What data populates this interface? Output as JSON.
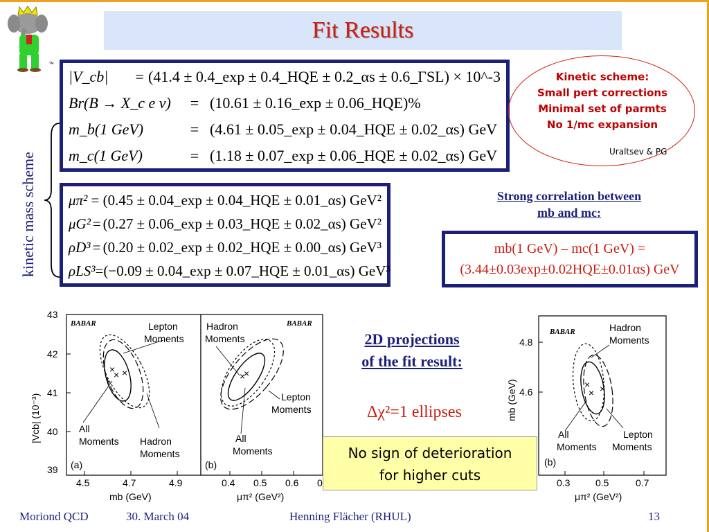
{
  "slide": {
    "title": "Fit Results",
    "tm": "™",
    "vertical_label": "kinetic mass scheme"
  },
  "box1": {
    "rows": [
      {
        "lhs": "|V_cb|",
        "rhs": "(41.4 ± 0.4_exp ± 0.4_HQE ± 0.2_αs ± 0.6_ΓSL) × 10^-3"
      },
      {
        "lhs": "Br(B → X_c e ν)",
        "rhs": "(10.61 ± 0.16_exp ± 0.06_HQE)%"
      },
      {
        "lhs": "m_b(1 GeV)",
        "rhs": "(4.61 ± 0.05_exp ± 0.04_HQE ± 0.02_αs) GeV"
      },
      {
        "lhs": "m_c(1 GeV)",
        "rhs": "(1.18 ± 0.07_exp ± 0.06_HQE ± 0.02_αs) GeV"
      }
    ]
  },
  "box2": {
    "rows": [
      {
        "lhs": "μπ²",
        "rhs": "(0.45 ± 0.04_exp ± 0.04_HQE ± 0.01_αs) GeV²"
      },
      {
        "lhs": "μG²",
        "rhs": "(0.27 ± 0.06_exp ± 0.03_HQE ± 0.02_αs) GeV²"
      },
      {
        "lhs": "ρD³",
        "rhs": "(0.20 ± 0.02_exp ± 0.02_HQE ± 0.00_αs) GeV³"
      },
      {
        "lhs": "ρLS³",
        "rhs": "(−0.09 ± 0.04_exp ± 0.07_HQE ± 0.01_αs) GeV³"
      }
    ]
  },
  "oval": {
    "line1": "Kinetic scheme:",
    "line2": "Small pert corrections",
    "line3": "Minimal set of parmts",
    "line4": "No 1/mc expansion",
    "credit": "Uraltsev & PG"
  },
  "correlation": {
    "title_line1": "Strong correlation between",
    "title_line2": "mb and mc:",
    "line1": "mb(1 GeV) – mc(1 GeV) =",
    "line2": "(3.44±0.03exp±0.02HQE±0.01αs) GeV"
  },
  "projections": {
    "title_line1": "2D projections",
    "title_line2": "of the fit result:",
    "ellipses": "Δχ²=1 ellipses"
  },
  "note": {
    "line1": "No sign of deterioration",
    "line2": "for higher cuts"
  },
  "plot_a": {
    "babar": "BABAR",
    "panel": "(a)",
    "xlabel": "mb (GeV)",
    "ylabel": "|Vcb| (10⁻³)",
    "xticks": [
      "4.5",
      "4.7",
      "4.9"
    ],
    "yticks": [
      "43",
      "42",
      "41",
      "40",
      "39"
    ],
    "lepton1": "Lepton",
    "lepton2": "Moments",
    "all1": "All",
    "all2": "Moments",
    "hadron1": "Hadron",
    "hadron2": "Moments"
  },
  "plot_b": {
    "babar": "BABAR",
    "panel": "(b)",
    "xlabel": "μπ² (GeV²)",
    "xticks": [
      "0.4",
      "0.5",
      "0.6",
      "0"
    ],
    "hadron1": "Hadron",
    "hadron2": "Moments",
    "lepton1": "Lepton",
    "lepton2": "Moments",
    "all1": "All",
    "all2": "Moments"
  },
  "plot_c": {
    "babar": "BABAR",
    "panel": "(b)",
    "xlabel": "μπ² (GeV²)",
    "ylabel": "mb (GeV)",
    "xticks": [
      "0.3",
      "0.5",
      "0.7"
    ],
    "yticks": [
      "4.8",
      "4.6"
    ],
    "hadron1": "Hadron",
    "hadron2": "Moments",
    "all1": "All",
    "all2": "Moments",
    "lepton1": "Lepton",
    "lepton2": "Moments"
  },
  "footer": {
    "left": "Moriond QCD",
    "date": "30. March 04",
    "author": "Henning Flächer (RHUL)",
    "page": "13"
  }
}
